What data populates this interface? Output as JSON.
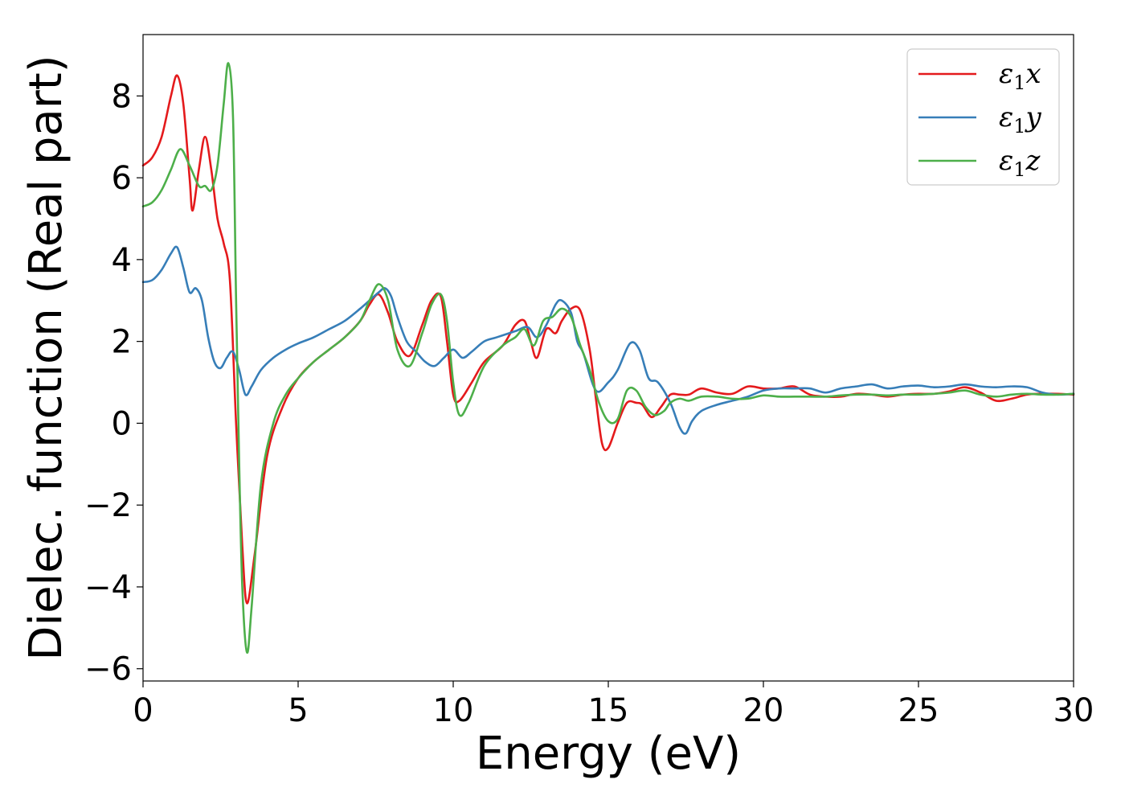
{
  "chart_data": {
    "type": "line",
    "xlabel": "Energy (eV)",
    "ylabel": "Dielec. function (Real part)",
    "xlim": [
      0,
      30
    ],
    "ylim": [
      -6.3,
      9.5
    ],
    "xticks": [
      0,
      5,
      10,
      15,
      20,
      25,
      30
    ],
    "xtick_labels": [
      "0",
      "5",
      "10",
      "15",
      "20",
      "25",
      "30"
    ],
    "yticks": [
      -6,
      -4,
      -2,
      0,
      2,
      4,
      6,
      8
    ],
    "ytick_labels": [
      "−6",
      "−4",
      "−2",
      "0",
      "2",
      "4",
      "6",
      "8"
    ],
    "grid": false,
    "legend_position": "top-right",
    "series": [
      {
        "name": "ε1x",
        "name_base": "ε",
        "name_sub": "1",
        "name_suffix": "x",
        "color": "#e41a1c",
        "x": [
          0,
          0.3,
          0.6,
          0.9,
          1.1,
          1.3,
          1.5,
          1.6,
          1.8,
          2.0,
          2.2,
          2.4,
          2.6,
          2.8,
          3.0,
          3.2,
          3.35,
          3.6,
          4.0,
          4.5,
          5.0,
          5.5,
          6.0,
          6.5,
          7.0,
          7.3,
          7.6,
          7.9,
          8.2,
          8.6,
          9.0,
          9.3,
          9.6,
          9.8,
          10.0,
          10.2,
          10.6,
          11.0,
          11.6,
          12.0,
          12.3,
          12.5,
          12.7,
          13.0,
          13.3,
          13.5,
          13.8,
          14.1,
          14.4,
          14.6,
          14.8,
          15.0,
          15.3,
          15.6,
          15.9,
          16.1,
          16.4,
          16.7,
          17.0,
          17.3,
          17.6,
          18.0,
          18.5,
          19.0,
          19.5,
          20.0,
          20.5,
          21.0,
          21.5,
          22.0,
          22.5,
          23.0,
          23.5,
          24.0,
          24.5,
          25.0,
          25.5,
          26.0,
          26.5,
          27.0,
          27.5,
          28.0,
          28.5,
          29.0,
          29.5,
          30.0
        ],
        "y": [
          6.3,
          6.5,
          7.0,
          8.0,
          8.5,
          7.8,
          6.0,
          5.2,
          6.2,
          7.0,
          6.2,
          5.0,
          4.4,
          3.5,
          0.0,
          -3.0,
          -4.4,
          -3.2,
          -0.8,
          0.4,
          1.1,
          1.5,
          1.8,
          2.1,
          2.5,
          2.9,
          3.15,
          2.7,
          2.0,
          1.65,
          2.4,
          3.0,
          3.1,
          2.0,
          0.7,
          0.55,
          1.0,
          1.5,
          1.9,
          2.4,
          2.5,
          2.0,
          1.6,
          2.3,
          2.2,
          2.5,
          2.8,
          2.75,
          1.8,
          0.6,
          -0.5,
          -0.6,
          0.0,
          0.5,
          0.5,
          0.45,
          0.15,
          0.4,
          0.7,
          0.7,
          0.7,
          0.85,
          0.75,
          0.72,
          0.9,
          0.85,
          0.85,
          0.9,
          0.7,
          0.65,
          0.65,
          0.72,
          0.7,
          0.65,
          0.7,
          0.72,
          0.72,
          0.78,
          0.88,
          0.75,
          0.55,
          0.6,
          0.7,
          0.72,
          0.72,
          0.7
        ]
      },
      {
        "name": "ε1y",
        "name_base": "ε",
        "name_sub": "1",
        "name_suffix": "y",
        "color": "#377eb8",
        "x": [
          0,
          0.3,
          0.6,
          0.9,
          1.1,
          1.3,
          1.5,
          1.7,
          1.9,
          2.1,
          2.3,
          2.5,
          2.7,
          2.9,
          3.1,
          3.3,
          3.5,
          3.8,
          4.2,
          4.6,
          5.0,
          5.5,
          6.0,
          6.5,
          7.0,
          7.3,
          7.6,
          7.8,
          8.0,
          8.2,
          8.5,
          8.8,
          9.1,
          9.4,
          9.7,
          10.0,
          10.3,
          10.6,
          11.0,
          11.4,
          12.0,
          12.4,
          12.7,
          13.0,
          13.3,
          13.5,
          13.8,
          14.0,
          14.2,
          14.6,
          15.0,
          15.3,
          15.7,
          16.0,
          16.3,
          16.6,
          17.0,
          17.3,
          17.5,
          17.7,
          18.0,
          18.5,
          19.0,
          19.5,
          20.0,
          20.5,
          21.0,
          21.5,
          22.0,
          22.5,
          23.0,
          23.5,
          24.0,
          24.5,
          25.0,
          25.5,
          26.0,
          26.5,
          27.0,
          27.5,
          28.0,
          28.5,
          29.0,
          29.5,
          30.0
        ],
        "y": [
          3.45,
          3.5,
          3.75,
          4.15,
          4.3,
          3.8,
          3.2,
          3.3,
          3.0,
          2.1,
          1.5,
          1.35,
          1.6,
          1.75,
          1.3,
          0.7,
          0.9,
          1.3,
          1.6,
          1.8,
          1.95,
          2.1,
          2.3,
          2.5,
          2.8,
          3.0,
          3.2,
          3.3,
          3.1,
          2.6,
          2.0,
          1.75,
          1.5,
          1.4,
          1.6,
          1.8,
          1.6,
          1.75,
          2.0,
          2.1,
          2.25,
          2.35,
          2.1,
          2.4,
          2.9,
          3.0,
          2.7,
          2.0,
          1.7,
          0.8,
          1.0,
          1.3,
          1.95,
          1.8,
          1.1,
          1.0,
          0.5,
          -0.1,
          -0.25,
          0.05,
          0.3,
          0.45,
          0.55,
          0.65,
          0.8,
          0.85,
          0.85,
          0.85,
          0.75,
          0.85,
          0.9,
          0.95,
          0.85,
          0.9,
          0.92,
          0.88,
          0.9,
          0.95,
          0.9,
          0.88,
          0.9,
          0.88,
          0.75,
          0.7,
          0.72
        ]
      },
      {
        "name": "ε1z",
        "name_base": "ε",
        "name_sub": "1",
        "name_suffix": "z",
        "color": "#4daf4a",
        "x": [
          0,
          0.3,
          0.6,
          0.9,
          1.2,
          1.5,
          1.8,
          2.0,
          2.2,
          2.4,
          2.6,
          2.75,
          2.9,
          3.0,
          3.1,
          3.2,
          3.35,
          3.5,
          3.8,
          4.2,
          4.6,
          5.0,
          5.5,
          6.0,
          6.5,
          7.0,
          7.3,
          7.6,
          7.9,
          8.2,
          8.6,
          9.0,
          9.3,
          9.6,
          9.8,
          10.0,
          10.2,
          10.5,
          11.0,
          11.6,
          12.0,
          12.3,
          12.6,
          12.9,
          13.2,
          13.5,
          13.8,
          14.1,
          14.4,
          14.7,
          15.0,
          15.3,
          15.6,
          15.9,
          16.2,
          16.5,
          16.8,
          17.0,
          17.3,
          17.6,
          18.0,
          18.5,
          19.0,
          19.5,
          20.0,
          20.5,
          21.0,
          21.5,
          22.0,
          22.5,
          23.0,
          23.5,
          24.0,
          24.5,
          25.0,
          25.5,
          26.0,
          26.5,
          27.0,
          27.5,
          28.0,
          28.5,
          29.0,
          29.5,
          30.0
        ],
        "y": [
          5.3,
          5.4,
          5.7,
          6.2,
          6.7,
          6.3,
          5.8,
          5.8,
          5.7,
          6.3,
          7.8,
          8.8,
          7.5,
          3.0,
          -1.0,
          -4.0,
          -5.6,
          -4.5,
          -1.5,
          0.0,
          0.7,
          1.1,
          1.5,
          1.8,
          2.1,
          2.5,
          3.0,
          3.4,
          3.0,
          1.8,
          1.4,
          2.2,
          2.9,
          3.15,
          2.5,
          1.0,
          0.2,
          0.5,
          1.4,
          1.9,
          2.1,
          2.3,
          1.9,
          2.5,
          2.6,
          2.8,
          2.6,
          1.9,
          1.3,
          0.5,
          0.05,
          0.1,
          0.8,
          0.8,
          0.4,
          0.2,
          0.3,
          0.5,
          0.6,
          0.55,
          0.65,
          0.65,
          0.6,
          0.6,
          0.68,
          0.65,
          0.65,
          0.65,
          0.65,
          0.68,
          0.7,
          0.7,
          0.68,
          0.7,
          0.7,
          0.72,
          0.75,
          0.8,
          0.7,
          0.65,
          0.7,
          0.72,
          0.7,
          0.7,
          0.72
        ]
      }
    ]
  }
}
